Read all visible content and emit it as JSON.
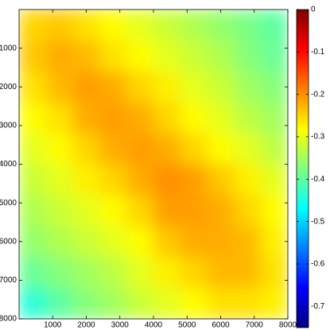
{
  "chart_data": {
    "type": "heatmap",
    "x": [
      400,
      1200,
      2000,
      2800,
      3600,
      4400,
      5200,
      6000,
      6800,
      7600
    ],
    "y": [
      400,
      1200,
      2000,
      2800,
      3600,
      4400,
      5200,
      6000,
      6800,
      7600
    ],
    "values": [
      [
        -0.25,
        -0.24,
        -0.26,
        -0.28,
        -0.3,
        -0.32,
        -0.34,
        -0.36,
        -0.38,
        -0.4
      ],
      [
        -0.24,
        -0.22,
        -0.23,
        -0.26,
        -0.28,
        -0.3,
        -0.32,
        -0.34,
        -0.37,
        -0.39
      ],
      [
        -0.26,
        -0.23,
        -0.21,
        -0.22,
        -0.25,
        -0.27,
        -0.3,
        -0.32,
        -0.35,
        -0.37
      ],
      [
        -0.28,
        -0.26,
        -0.22,
        -0.21,
        -0.22,
        -0.25,
        -0.28,
        -0.3,
        -0.33,
        -0.35
      ],
      [
        -0.3,
        -0.28,
        -0.25,
        -0.22,
        -0.21,
        -0.22,
        -0.25,
        -0.28,
        -0.3,
        -0.33
      ],
      [
        -0.32,
        -0.3,
        -0.27,
        -0.25,
        -0.22,
        -0.2,
        -0.21,
        -0.24,
        -0.27,
        -0.3
      ],
      [
        -0.34,
        -0.32,
        -0.3,
        -0.28,
        -0.25,
        -0.21,
        -0.21,
        -0.22,
        -0.25,
        -0.28
      ],
      [
        -0.36,
        -0.34,
        -0.32,
        -0.3,
        -0.28,
        -0.24,
        -0.22,
        -0.22,
        -0.23,
        -0.27
      ],
      [
        -0.39,
        -0.37,
        -0.35,
        -0.33,
        -0.3,
        -0.27,
        -0.25,
        -0.23,
        -0.23,
        -0.26
      ],
      [
        -0.44,
        -0.4,
        -0.37,
        -0.35,
        -0.32,
        -0.3,
        -0.28,
        -0.26,
        -0.26,
        -0.27
      ]
    ],
    "xlim": [
      0,
      8000
    ],
    "ylim": [
      0,
      8000
    ],
    "y_reversed": true,
    "xticks": [
      1000,
      2000,
      3000,
      4000,
      5000,
      6000,
      7000,
      8000
    ],
    "yticks": [
      1000,
      2000,
      3000,
      4000,
      5000,
      6000,
      7000,
      8000
    ],
    "colormap": "jet",
    "colorbar": {
      "clim": [
        -0.75,
        0
      ],
      "ticks": [
        0,
        -0.1,
        -0.2,
        -0.3,
        -0.4,
        -0.5,
        -0.6,
        -0.7
      ]
    }
  }
}
